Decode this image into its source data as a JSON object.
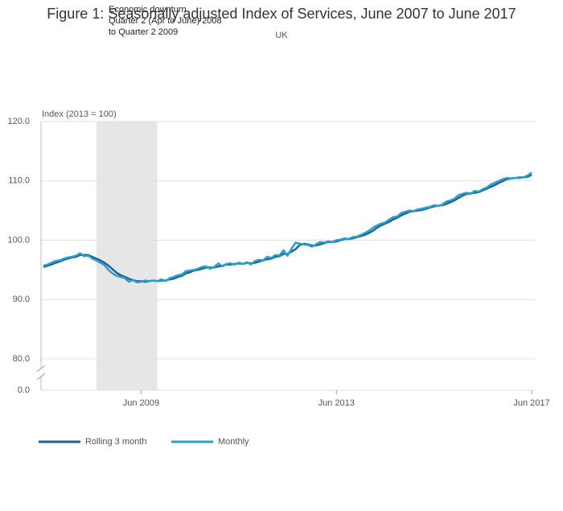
{
  "chart_data": {
    "type": "line",
    "title": "Figure 1: Seasonally adjusted Index of Services, June 2007 to June 2017",
    "subtitle": "UK",
    "y_label": "Index (2013 = 100)",
    "annotation": [
      "Economic downturn",
      "Quarter 2 (Apr to June) 2008",
      "to Quarter 2 2009"
    ],
    "shade": {
      "from": "Jul 2008",
      "to": "Oct 2009",
      "color": "#e6e6e6"
    },
    "x": [
      "Jun 2007",
      "Jul 2007",
      "Aug 2007",
      "Sep 2007",
      "Oct 2007",
      "Nov 2007",
      "Dec 2007",
      "Jan 2008",
      "Feb 2008",
      "Mar 2008",
      "Apr 2008",
      "May 2008",
      "Jun 2008",
      "Jul 2008",
      "Aug 2008",
      "Sep 2008",
      "Oct 2008",
      "Nov 2008",
      "Dec 2008",
      "Jan 2009",
      "Feb 2009",
      "Mar 2009",
      "Apr 2009",
      "May 2009",
      "Jun 2009",
      "Jul 2009",
      "Aug 2009",
      "Sep 2009",
      "Oct 2009",
      "Nov 2009",
      "Dec 2009",
      "Jan 2010",
      "Feb 2010",
      "Mar 2010",
      "Apr 2010",
      "May 2010",
      "Jun 2010",
      "Jul 2010",
      "Aug 2010",
      "Sep 2010",
      "Oct 2010",
      "Nov 2010",
      "Dec 2010",
      "Jan 2011",
      "Feb 2011",
      "Mar 2011",
      "Apr 2011",
      "May 2011",
      "Jun 2011",
      "Jul 2011",
      "Aug 2011",
      "Sep 2011",
      "Oct 2011",
      "Nov 2011",
      "Dec 2011",
      "Jan 2012",
      "Feb 2012",
      "Mar 2012",
      "Apr 2012",
      "May 2012",
      "Jun 2012",
      "Jul 2012",
      "Aug 2012",
      "Sep 2012",
      "Oct 2012",
      "Nov 2012",
      "Dec 2012",
      "Jan 2013",
      "Feb 2013",
      "Mar 2013",
      "Apr 2013",
      "May 2013",
      "Jun 2013",
      "Jul 2013",
      "Aug 2013",
      "Sep 2013",
      "Oct 2013",
      "Nov 2013",
      "Dec 2013",
      "Jan 2014",
      "Feb 2014",
      "Mar 2014",
      "Apr 2014",
      "May 2014",
      "Jun 2014",
      "Jul 2014",
      "Aug 2014",
      "Sep 2014",
      "Oct 2014",
      "Nov 2014",
      "Dec 2014",
      "Jan 2015",
      "Feb 2015",
      "Mar 2015",
      "Apr 2015",
      "May 2015",
      "Jun 2015",
      "Jul 2015",
      "Aug 2015",
      "Sep 2015",
      "Oct 2015",
      "Nov 2015",
      "Dec 2015",
      "Jan 2016",
      "Feb 2016",
      "Mar 2016",
      "Apr 2016",
      "May 2016",
      "Jun 2016",
      "Jul 2016",
      "Aug 2016",
      "Sep 2016",
      "Oct 2016",
      "Nov 2016",
      "Dec 2016",
      "Jan 2017",
      "Feb 2017",
      "Mar 2017",
      "Apr 2017",
      "May 2017",
      "Jun 2017"
    ],
    "xticks": [
      "Jun 2009",
      "Jun 2013",
      "Jun 2017"
    ],
    "series": [
      {
        "name": "Rolling 3 month",
        "color": "#206095",
        "values": [
          95.5,
          95.7,
          95.9,
          96.2,
          96.4,
          96.7,
          96.9,
          97.1,
          97.2,
          97.5,
          97.5,
          97.5,
          97.2,
          96.9,
          96.6,
          96.2,
          95.7,
          95.1,
          94.5,
          94.1,
          93.8,
          93.5,
          93.3,
          93.1,
          93.1,
          93.0,
          93.1,
          93.2,
          93.1,
          93.2,
          93.2,
          93.4,
          93.5,
          93.8,
          94.0,
          94.4,
          94.6,
          94.9,
          95.0,
          95.2,
          95.4,
          95.4,
          95.4,
          95.6,
          95.7,
          95.9,
          95.9,
          96.0,
          96.1,
          96.0,
          96.2,
          96.1,
          96.2,
          96.4,
          96.6,
          96.8,
          96.9,
          97.2,
          97.3,
          97.7,
          97.7,
          98.1,
          98.5,
          99.2,
          99.4,
          99.3,
          99.1,
          99.1,
          99.3,
          99.5,
          99.7,
          99.7,
          99.8,
          100.0,
          100.2,
          100.2,
          100.3,
          100.5,
          100.7,
          100.9,
          101.2,
          101.6,
          102.1,
          102.5,
          102.8,
          103.1,
          103.5,
          103.8,
          104.2,
          104.5,
          104.8,
          104.9,
          105.0,
          105.1,
          105.3,
          105.5,
          105.7,
          105.8,
          105.9,
          106.1,
          106.4,
          106.7,
          107.1,
          107.5,
          107.8,
          107.9,
          108.0,
          108.1,
          108.4,
          108.7,
          109.0,
          109.3,
          109.7,
          110.0,
          110.3,
          110.4,
          110.5,
          110.5,
          110.6,
          110.7,
          111.0
        ]
      },
      {
        "name": "Monthly",
        "color": "#27a0cc",
        "values": [
          95.7,
          95.9,
          96.2,
          96.5,
          96.6,
          96.9,
          97.1,
          97.2,
          97.4,
          97.8,
          97.3,
          97.4,
          96.9,
          96.6,
          96.2,
          95.8,
          95.0,
          94.4,
          94.0,
          93.8,
          93.6,
          93.0,
          93.3,
          92.9,
          93.0,
          93.2,
          93.1,
          93.2,
          93.1,
          93.4,
          93.1,
          93.6,
          93.8,
          94.1,
          94.2,
          94.8,
          94.9,
          95.0,
          95.2,
          95.5,
          95.6,
          95.2,
          95.5,
          96.1,
          95.6,
          96.0,
          96.1,
          95.9,
          96.2,
          96.0,
          96.3,
          95.9,
          96.5,
          96.7,
          96.6,
          97.2,
          97.0,
          97.5,
          97.4,
          98.3,
          97.4,
          98.6,
          99.6,
          99.4,
          99.3,
          99.2,
          98.9,
          99.3,
          99.7,
          99.6,
          99.8,
          99.7,
          100.0,
          100.1,
          100.3,
          100.2,
          100.5,
          100.6,
          100.9,
          101.2,
          101.6,
          102.1,
          102.5,
          102.8,
          103.0,
          103.5,
          103.9,
          104.0,
          104.6,
          104.8,
          105.0,
          104.9,
          105.2,
          105.3,
          105.5,
          105.6,
          105.9,
          105.8,
          106.0,
          106.5,
          106.7,
          107.0,
          107.6,
          107.8,
          108.0,
          107.8,
          108.3,
          108.2,
          108.6,
          108.9,
          109.4,
          109.7,
          110.0,
          110.3,
          110.5,
          110.4,
          110.5,
          110.6,
          110.6,
          110.9,
          111.4
        ]
      }
    ],
    "ylim": [
      80,
      120
    ],
    "axis_break": true,
    "yticks": [
      {
        "value": 0,
        "label": "0.0"
      },
      {
        "value": 80,
        "label": "80.0"
      },
      {
        "value": 90,
        "label": "90.0"
      },
      {
        "value": 100,
        "label": "100.0"
      },
      {
        "value": 110,
        "label": "110.0"
      },
      {
        "value": 120,
        "label": "120.0"
      }
    ],
    "grid": true
  }
}
